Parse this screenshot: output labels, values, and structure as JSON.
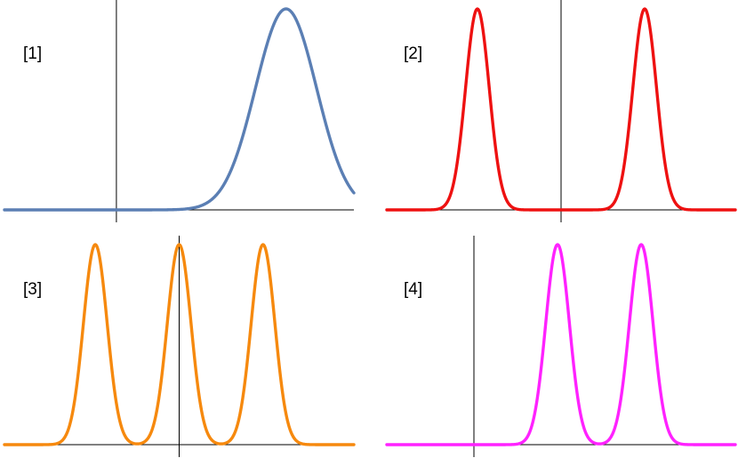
{
  "chart_data": [
    {
      "type": "line",
      "label": "[1]",
      "color": "#5b7fb4",
      "xlim": [
        -1.65,
        3.5
      ],
      "ylim": [
        0,
        1.0
      ],
      "peaks": [
        2.5
      ],
      "width": 0.45,
      "amplitude": 1.0
    },
    {
      "type": "line",
      "label": "[2]",
      "color": "#ee1111",
      "xlim": [
        -2.5,
        2.5
      ],
      "ylim": [
        0,
        1.0
      ],
      "peaks": [
        -1.2,
        1.2
      ],
      "width": 0.17,
      "amplitude": 1.0
    },
    {
      "type": "line",
      "label": "[3]",
      "color": "#f6890e",
      "xlim": [
        -2.5,
        2.5
      ],
      "ylim": [
        0,
        1.0
      ],
      "peaks": [
        -1.2,
        0,
        1.2
      ],
      "width": 0.17,
      "amplitude": 1.0
    },
    {
      "type": "line",
      "label": "[4]",
      "color": "#ff22ff",
      "xlim": [
        -1.25,
        3.75
      ],
      "ylim": [
        0,
        1.0
      ],
      "peaks": [
        1.2,
        2.4
      ],
      "width": 0.17,
      "amplitude": 1.0
    }
  ]
}
